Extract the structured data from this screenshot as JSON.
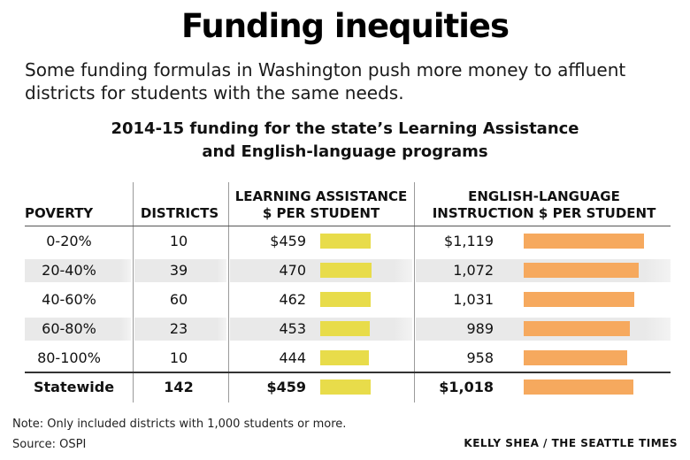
{
  "title": "Funding inequities",
  "subtitle": "Some funding formulas in Washington push more money to affluent districts for students with the same needs.",
  "chart_data": {
    "type": "table",
    "title_line1": "2014-15 funding for the state’s Learning Assistance",
    "title_line2": "and English-language programs",
    "headers": {
      "poverty": "POVERTY",
      "districts": "DISTRICTS",
      "la_line1": "LEARNING ASSISTANCE",
      "la_line2": "$ PER STUDENT",
      "el_line1": "ENGLISH-LANGUAGE",
      "el_line2": "INSTRUCTION $ PER STUDENT"
    },
    "rows": [
      {
        "poverty": "0-20%",
        "districts": "10",
        "la_label": "$459",
        "la_value": 459,
        "el_label": "$1,119",
        "el_value": 1119
      },
      {
        "poverty": "20-40%",
        "districts": "39",
        "la_label": "470",
        "la_value": 470,
        "el_label": "1,072",
        "el_value": 1072
      },
      {
        "poverty": "40-60%",
        "districts": "60",
        "la_label": "462",
        "la_value": 462,
        "el_label": "1,031",
        "el_value": 1031
      },
      {
        "poverty": "60-80%",
        "districts": "23",
        "la_label": "453",
        "la_value": 453,
        "el_label": "989",
        "el_value": 989
      },
      {
        "poverty": "80-100%",
        "districts": "10",
        "la_label": "444",
        "la_value": 444,
        "el_label": "958",
        "el_value": 958
      }
    ],
    "total": {
      "poverty": "Statewide",
      "districts": "142",
      "la_label": "$459",
      "la_value": 459,
      "el_label": "$1,018",
      "el_value": 1018
    },
    "colors": {
      "learning_assistance": "#e8dc4a",
      "english_language": "#f6a95e",
      "band": "#e9e9e9"
    }
  },
  "note": "Note: Only included districts with 1,000 students or more.",
  "source": "Source: OSPI",
  "credit": "KELLY SHEA / THE SEATTLE TIMES"
}
